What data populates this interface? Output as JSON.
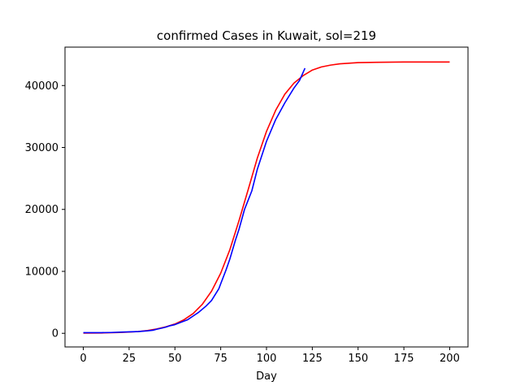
{
  "chart_data": {
    "type": "line",
    "title": "confirmed Cases in Kuwait, sol=219",
    "xlabel": "Day",
    "ylabel": "",
    "xlim": [
      -10,
      210
    ],
    "ylim": [
      -2200,
      46200
    ],
    "xticks": [
      0,
      25,
      50,
      75,
      100,
      125,
      150,
      175,
      200
    ],
    "yticks": [
      0,
      10000,
      20000,
      30000,
      40000
    ],
    "grid": false,
    "legend": "none",
    "series": [
      {
        "color": "#ff0000",
        "x": [
          0,
          10,
          20,
          30,
          35,
          40,
          45,
          50,
          55,
          60,
          65,
          70,
          75,
          80,
          85,
          90,
          95,
          100,
          105,
          110,
          115,
          120,
          125,
          130,
          135,
          140,
          150,
          160,
          175,
          200
        ],
        "y": [
          30,
          60,
          130,
          280,
          450,
          700,
          1050,
          1500,
          2200,
          3200,
          4700,
          6800,
          9700,
          13500,
          18200,
          23200,
          28300,
          32600,
          36000,
          38600,
          40400,
          41600,
          42500,
          43000,
          43300,
          43500,
          43700,
          43750,
          43800,
          43800
        ]
      },
      {
        "color": "#0000ff",
        "x": [
          0,
          5,
          10,
          15,
          20,
          25,
          30,
          35,
          38,
          40,
          43,
          45,
          47,
          50,
          53,
          57,
          60,
          63,
          67,
          70,
          74,
          75,
          78,
          80,
          83,
          85,
          88,
          90,
          92,
          95,
          100,
          105,
          110,
          115,
          118,
          121
        ],
        "y": [
          100,
          100,
          110,
          130,
          180,
          230,
          290,
          400,
          500,
          650,
          850,
          1000,
          1200,
          1400,
          1750,
          2200,
          2800,
          3400,
          4400,
          5300,
          7200,
          8000,
          10300,
          12000,
          15000,
          16800,
          20000,
          21500,
          23000,
          26500,
          31000,
          34500,
          37200,
          39600,
          40800,
          42800
        ]
      }
    ]
  }
}
